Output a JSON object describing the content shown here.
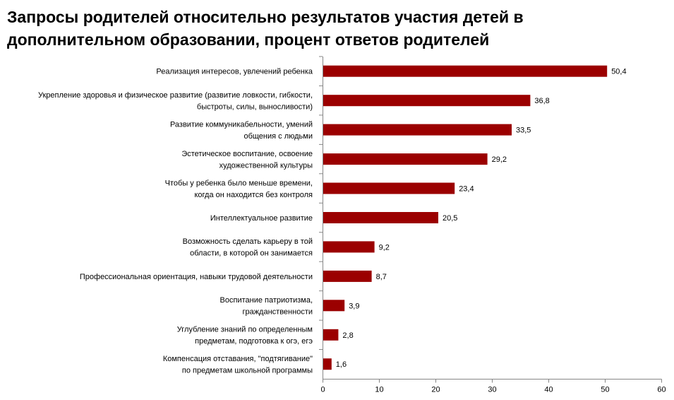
{
  "chart_data": {
    "type": "bar",
    "orientation": "horizontal",
    "title_lines": [
      "Запросы родителей относительно результатов участия детей в",
      "дополнительном образовании, процент ответов родителей"
    ],
    "categories": [
      [
        "Реализация интересов, увлечений ребенка"
      ],
      [
        "Укрепление здоровья и физическое развитие (развитие ловкости, гибкости,",
        "быстроты, силы, выносливости)"
      ],
      [
        "Развитие коммуникабельности, умений",
        "общения с людьми"
      ],
      [
        "Эстетическое воспитание, освоение",
        "художественной культуры"
      ],
      [
        "Чтобы у ребенка было меньше времени,",
        "когда он находится без контроля"
      ],
      [
        "Интеллектуальное развитие"
      ],
      [
        "Возможность сделать карьеру в той",
        "области, в которой он занимается"
      ],
      [
        "Профессиональная ориентация, навыки трудовой деятельности"
      ],
      [
        "Воспитание патриотизма,",
        "гражданственности"
      ],
      [
        "Углубление знаний по определенным",
        "предметам, подготовка к огэ, егэ"
      ],
      [
        "Компенсация отставания, \"подтягивание\"",
        "по предметам школьной программы"
      ]
    ],
    "values": [
      50.4,
      36.8,
      33.5,
      29.2,
      23.4,
      20.5,
      9.2,
      8.7,
      3.9,
      2.8,
      1.6
    ],
    "value_labels": [
      "50,4",
      "36,8",
      "33,5",
      "29,2",
      "23,4",
      "20,5",
      "9,2",
      "8,7",
      "3,9",
      "2,8",
      "1,6"
    ],
    "xlim": [
      0,
      60
    ],
    "xticks": [
      0,
      10,
      20,
      30,
      40,
      50,
      60
    ],
    "bar_color": "#9b0000",
    "axis_color": "#868686",
    "grid": false,
    "legend": "none"
  }
}
